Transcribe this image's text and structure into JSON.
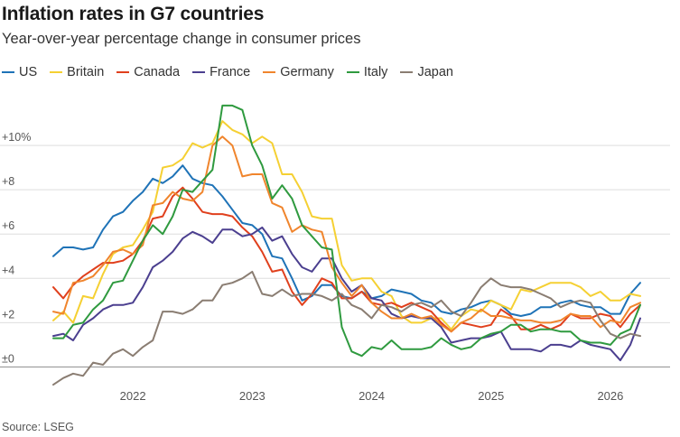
{
  "title": "Inflation rates in G7 countries",
  "subtitle": "Year-over-year percentage change in consumer prices",
  "source": "Source: LSEG",
  "chart_data": {
    "type": "line",
    "ylim": [
      -1,
      12
    ],
    "y_ticks": [
      0,
      2,
      4,
      6,
      8,
      10
    ],
    "y_tick_labels": [
      "±0",
      "+2",
      "+4",
      "+6",
      "+8",
      "+10%"
    ],
    "x_tick_labels": [
      "2022",
      "2023",
      "2024",
      "2025",
      "2026"
    ],
    "x_tick_values": [
      2022.0,
      2023.0,
      2024.0,
      2025.0,
      2026.0
    ],
    "xlim": [
      2021.25,
      2026.5
    ],
    "grid": "horizontal",
    "legend_position": "top-left",
    "series": [
      {
        "name": "US",
        "color": "#1f73b7",
        "x": [
          2021.333,
          2021.417,
          2021.5,
          2021.583,
          2021.667,
          2021.75,
          2021.833,
          2021.917,
          2022.0,
          2022.083,
          2022.167,
          2022.25,
          2022.333,
          2022.417,
          2022.5,
          2022.583,
          2022.667,
          2022.75,
          2022.833,
          2022.917,
          2023.0,
          2023.083,
          2023.167,
          2023.25,
          2023.333,
          2023.417,
          2023.5,
          2023.583,
          2023.667,
          2023.75,
          2023.833,
          2023.917,
          2024.0,
          2024.083,
          2024.167,
          2024.25,
          2024.333,
          2024.417,
          2024.5,
          2024.583,
          2024.667,
          2024.75,
          2024.833,
          2024.917,
          2025.0,
          2025.083,
          2025.167,
          2025.25,
          2025.333,
          2025.417,
          2025.5,
          2025.583,
          2025.667,
          2025.75,
          2025.833,
          2025.917,
          2026.0,
          2026.083,
          2026.167,
          2026.25
        ],
        "y": [
          5.0,
          5.4,
          5.4,
          5.3,
          5.4,
          6.2,
          6.8,
          7.0,
          7.5,
          7.9,
          8.5,
          8.3,
          8.6,
          9.1,
          8.5,
          8.3,
          8.2,
          7.7,
          7.1,
          6.5,
          6.4,
          6.0,
          5.0,
          4.9,
          4.0,
          3.0,
          3.2,
          3.7,
          3.7,
          3.2,
          3.1,
          3.4,
          3.1,
          3.2,
          3.5,
          3.4,
          3.3,
          3.0,
          2.9,
          2.5,
          2.4,
          2.6,
          2.7,
          2.9,
          3.0,
          2.8,
          2.4,
          2.3,
          2.4,
          2.7,
          2.7,
          2.9,
          3.0,
          2.8,
          2.7,
          2.7,
          2.4,
          2.4,
          3.3,
          3.8
        ]
      },
      {
        "name": "Britain",
        "color": "#f5d033",
        "x": [
          2021.333,
          2021.417,
          2021.5,
          2021.583,
          2021.667,
          2021.75,
          2021.833,
          2021.917,
          2022.0,
          2022.083,
          2022.167,
          2022.25,
          2022.333,
          2022.417,
          2022.5,
          2022.583,
          2022.667,
          2022.75,
          2022.833,
          2022.917,
          2023.0,
          2023.083,
          2023.167,
          2023.25,
          2023.333,
          2023.417,
          2023.5,
          2023.583,
          2023.667,
          2023.75,
          2023.833,
          2023.917,
          2024.0,
          2024.083,
          2024.167,
          2024.25,
          2024.333,
          2024.417,
          2024.5,
          2024.583,
          2024.667,
          2024.75,
          2024.833,
          2024.917,
          2025.0,
          2025.083,
          2025.167,
          2025.25,
          2025.333,
          2025.417,
          2025.5,
          2025.583,
          2025.667,
          2025.75,
          2025.833,
          2025.917,
          2026.0,
          2026.083,
          2026.167,
          2026.25
        ],
        "y": [
          2.1,
          2.5,
          2.0,
          3.2,
          3.1,
          4.2,
          5.1,
          5.4,
          5.5,
          6.2,
          7.0,
          9.0,
          9.1,
          9.4,
          10.1,
          9.9,
          10.1,
          11.1,
          10.7,
          10.5,
          10.1,
          10.4,
          10.1,
          8.7,
          8.7,
          7.9,
          6.8,
          6.7,
          6.7,
          4.6,
          3.9,
          4.0,
          4.0,
          3.4,
          3.2,
          2.3,
          2.0,
          2.0,
          2.2,
          2.2,
          1.7,
          2.3,
          2.6,
          2.5,
          3.0,
          2.8,
          2.6,
          3.5,
          3.4,
          3.6,
          3.8,
          3.8,
          3.8,
          3.6,
          3.2,
          3.4,
          3.0,
          3.0,
          3.3,
          3.2
        ]
      },
      {
        "name": "Canada",
        "color": "#e0401d",
        "x": [
          2021.333,
          2021.417,
          2021.5,
          2021.583,
          2021.667,
          2021.75,
          2021.833,
          2021.917,
          2022.0,
          2022.083,
          2022.167,
          2022.25,
          2022.333,
          2022.417,
          2022.5,
          2022.583,
          2022.667,
          2022.75,
          2022.833,
          2022.917,
          2023.0,
          2023.083,
          2023.167,
          2023.25,
          2023.333,
          2023.417,
          2023.5,
          2023.583,
          2023.667,
          2023.75,
          2023.833,
          2023.917,
          2024.0,
          2024.083,
          2024.167,
          2024.25,
          2024.333,
          2024.417,
          2024.5,
          2024.583,
          2024.667,
          2024.75,
          2024.833,
          2024.917,
          2025.0,
          2025.083,
          2025.167,
          2025.25,
          2025.333,
          2025.417,
          2025.5,
          2025.583,
          2025.667,
          2025.75,
          2025.833,
          2025.917,
          2026.0,
          2026.083,
          2026.167,
          2026.25
        ],
        "y": [
          3.6,
          3.1,
          3.7,
          4.1,
          4.4,
          4.7,
          4.7,
          4.8,
          5.1,
          5.7,
          6.7,
          6.8,
          7.7,
          8.1,
          7.6,
          7.0,
          6.9,
          6.9,
          6.8,
          6.3,
          5.9,
          5.2,
          4.3,
          4.4,
          3.4,
          2.8,
          3.3,
          4.0,
          3.8,
          3.1,
          3.1,
          3.4,
          2.9,
          2.8,
          2.9,
          2.7,
          2.9,
          2.7,
          2.5,
          2.0,
          1.6,
          2.0,
          1.9,
          1.8,
          1.9,
          2.6,
          2.3,
          1.7,
          1.7,
          1.9,
          1.7,
          1.9,
          2.4,
          2.2,
          2.2,
          2.4,
          2.3,
          1.8,
          2.4,
          2.8
        ]
      },
      {
        "name": "France",
        "color": "#4b3f8f",
        "x": [
          2021.333,
          2021.417,
          2021.5,
          2021.583,
          2021.667,
          2021.75,
          2021.833,
          2021.917,
          2022.0,
          2022.083,
          2022.167,
          2022.25,
          2022.333,
          2022.417,
          2022.5,
          2022.583,
          2022.667,
          2022.75,
          2022.833,
          2022.917,
          2023.0,
          2023.083,
          2023.167,
          2023.25,
          2023.333,
          2023.417,
          2023.5,
          2023.583,
          2023.667,
          2023.75,
          2023.833,
          2023.917,
          2024.0,
          2024.083,
          2024.167,
          2024.25,
          2024.333,
          2024.417,
          2024.5,
          2024.583,
          2024.667,
          2024.75,
          2024.833,
          2024.917,
          2025.0,
          2025.083,
          2025.167,
          2025.25,
          2025.333,
          2025.417,
          2025.5,
          2025.583,
          2025.667,
          2025.75,
          2025.833,
          2025.917,
          2026.0,
          2026.083,
          2026.167,
          2026.25
        ],
        "y": [
          1.4,
          1.5,
          1.2,
          1.9,
          2.2,
          2.6,
          2.8,
          2.8,
          2.9,
          3.6,
          4.5,
          4.8,
          5.2,
          5.8,
          6.1,
          5.9,
          5.6,
          6.2,
          6.2,
          5.9,
          6.0,
          6.3,
          5.7,
          5.9,
          5.1,
          4.5,
          4.3,
          4.9,
          4.9,
          4.0,
          3.4,
          3.7,
          3.1,
          3.0,
          2.4,
          2.2,
          2.3,
          2.2,
          2.2,
          1.8,
          1.1,
          1.2,
          1.3,
          1.3,
          1.4,
          1.6,
          0.8,
          0.8,
          0.8,
          0.7,
          1.0,
          1.0,
          0.9,
          1.2,
          1.0,
          0.9,
          0.8,
          0.3,
          1.0,
          2.2
        ]
      },
      {
        "name": "Germany",
        "color": "#f0852d",
        "x": [
          2021.333,
          2021.417,
          2021.5,
          2021.583,
          2021.667,
          2021.75,
          2021.833,
          2021.917,
          2022.0,
          2022.083,
          2022.167,
          2022.25,
          2022.333,
          2022.417,
          2022.5,
          2022.583,
          2022.667,
          2022.75,
          2022.833,
          2022.917,
          2023.0,
          2023.083,
          2023.167,
          2023.25,
          2023.333,
          2023.417,
          2023.5,
          2023.583,
          2023.667,
          2023.75,
          2023.833,
          2023.917,
          2024.0,
          2024.083,
          2024.167,
          2024.25,
          2024.333,
          2024.417,
          2024.5,
          2024.583,
          2024.667,
          2024.75,
          2024.833,
          2024.917,
          2025.0,
          2025.083,
          2025.167,
          2025.25,
          2025.333,
          2025.417,
          2025.5,
          2025.583,
          2025.667,
          2025.75,
          2025.833,
          2025.917,
          2026.0,
          2026.083,
          2026.167,
          2026.25
        ],
        "y": [
          2.5,
          2.4,
          3.8,
          3.9,
          4.1,
          4.6,
          5.2,
          5.3,
          5.1,
          5.5,
          7.3,
          7.4,
          7.9,
          7.6,
          7.5,
          7.9,
          10.0,
          10.4,
          10.0,
          8.6,
          8.7,
          8.7,
          7.4,
          7.2,
          6.1,
          6.4,
          6.2,
          6.1,
          4.5,
          3.8,
          3.2,
          3.7,
          2.9,
          2.5,
          2.2,
          2.2,
          2.4,
          2.2,
          2.3,
          1.9,
          1.6,
          2.0,
          2.2,
          2.6,
          2.3,
          2.3,
          2.2,
          2.1,
          2.1,
          2.0,
          2.0,
          2.1,
          2.4,
          2.3,
          2.3,
          1.8,
          2.1,
          2.0,
          2.7,
          2.9
        ]
      },
      {
        "name": "Italy",
        "color": "#2f9a3f",
        "x": [
          2021.333,
          2021.417,
          2021.5,
          2021.583,
          2021.667,
          2021.75,
          2021.833,
          2021.917,
          2022.0,
          2022.083,
          2022.167,
          2022.25,
          2022.333,
          2022.417,
          2022.5,
          2022.583,
          2022.667,
          2022.75,
          2022.833,
          2022.917,
          2023.0,
          2023.083,
          2023.167,
          2023.25,
          2023.333,
          2023.417,
          2023.5,
          2023.583,
          2023.667,
          2023.75,
          2023.833,
          2023.917,
          2024.0,
          2024.083,
          2024.167,
          2024.25,
          2024.333,
          2024.417,
          2024.5,
          2024.583,
          2024.667,
          2024.75,
          2024.833,
          2024.917,
          2025.0,
          2025.083,
          2025.167,
          2025.25,
          2025.333,
          2025.417,
          2025.5,
          2025.583,
          2025.667,
          2025.75,
          2025.833,
          2025.917,
          2026.0,
          2026.083,
          2026.167,
          2026.25
        ],
        "y": [
          1.3,
          1.3,
          1.9,
          2.0,
          2.6,
          3.0,
          3.8,
          3.9,
          4.8,
          5.7,
          6.4,
          6.0,
          6.8,
          8.0,
          7.9,
          8.4,
          8.9,
          11.8,
          11.8,
          11.6,
          10.0,
          9.1,
          7.6,
          8.2,
          7.6,
          6.4,
          5.9,
          5.4,
          5.3,
          1.8,
          0.7,
          0.5,
          0.9,
          0.8,
          1.2,
          0.8,
          0.8,
          0.8,
          0.9,
          1.3,
          1.0,
          0.8,
          0.9,
          1.3,
          1.5,
          1.6,
          1.9,
          1.9,
          1.6,
          1.7,
          1.7,
          1.6,
          1.6,
          1.2,
          1.1,
          1.1,
          1.0,
          1.5,
          1.7,
          2.8
        ]
      },
      {
        "name": "Japan",
        "color": "#8a7d72",
        "x": [
          2021.333,
          2021.417,
          2021.5,
          2021.583,
          2021.667,
          2021.75,
          2021.833,
          2021.917,
          2022.0,
          2022.083,
          2022.167,
          2022.25,
          2022.333,
          2022.417,
          2022.5,
          2022.583,
          2022.667,
          2022.75,
          2022.833,
          2022.917,
          2023.0,
          2023.083,
          2023.167,
          2023.25,
          2023.333,
          2023.417,
          2023.5,
          2023.583,
          2023.667,
          2023.75,
          2023.833,
          2023.917,
          2024.0,
          2024.083,
          2024.167,
          2024.25,
          2024.333,
          2024.417,
          2024.5,
          2024.583,
          2024.667,
          2024.75,
          2024.833,
          2024.917,
          2025.0,
          2025.083,
          2025.167,
          2025.25,
          2025.333,
          2025.417,
          2025.5,
          2025.583,
          2025.667,
          2025.75,
          2025.833,
          2025.917,
          2026.0,
          2026.083,
          2026.167,
          2026.25
        ],
        "y": [
          -0.8,
          -0.5,
          -0.3,
          -0.4,
          0.2,
          0.1,
          0.6,
          0.8,
          0.5,
          0.9,
          1.2,
          2.5,
          2.5,
          2.4,
          2.6,
          3.0,
          3.0,
          3.7,
          3.8,
          4.0,
          4.3,
          3.3,
          3.2,
          3.5,
          3.2,
          3.3,
          3.3,
          3.2,
          3.0,
          3.3,
          2.8,
          2.6,
          2.2,
          2.8,
          2.7,
          2.5,
          2.8,
          2.9,
          2.7,
          3.0,
          2.5,
          2.3,
          2.9,
          3.6,
          4.0,
          3.7,
          3.6,
          3.6,
          3.5,
          3.3,
          3.1,
          2.7,
          2.9,
          3.0,
          2.9,
          2.1,
          1.5,
          1.3,
          1.5,
          1.4
        ]
      }
    ]
  }
}
